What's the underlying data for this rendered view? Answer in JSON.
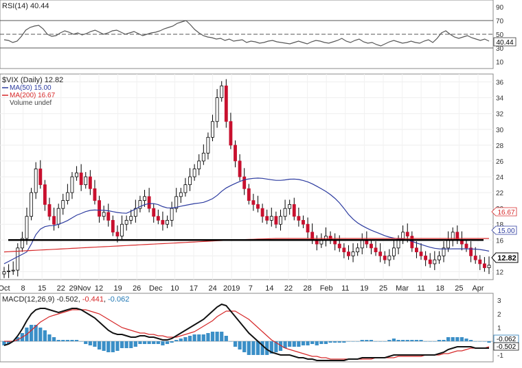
{
  "chart_data": [
    {
      "type": "line",
      "name": "rsi-panel",
      "label": "RSI(14) 40.44",
      "ylim": [
        0,
        100
      ],
      "yticks": [
        "90",
        "70",
        "50",
        "30",
        "10"
      ],
      "current_tag": "40.44",
      "levels": [
        70,
        50,
        30
      ],
      "values": [
        42,
        41,
        38,
        40,
        47,
        56,
        60,
        62,
        63,
        58,
        50,
        47,
        48,
        52,
        55,
        53,
        50,
        52,
        49,
        51,
        54,
        56,
        53,
        50,
        52,
        55,
        56,
        53,
        50,
        52,
        54,
        51,
        48,
        50,
        52,
        53,
        55,
        58,
        60,
        62,
        66,
        68,
        70,
        64,
        57,
        52,
        48,
        46,
        45,
        43,
        44,
        41,
        43,
        40,
        41,
        42,
        38,
        40,
        39,
        37,
        38,
        40,
        41,
        39,
        38,
        37,
        36,
        38,
        40,
        38,
        36,
        39,
        41,
        40,
        38,
        37,
        39,
        41,
        44,
        40,
        38,
        41,
        43,
        39,
        37,
        38,
        35,
        33,
        36,
        39,
        41,
        39,
        37,
        38,
        40,
        38,
        37,
        40,
        42,
        38,
        44,
        52,
        55,
        50,
        46,
        44,
        46,
        48,
        45,
        43,
        41,
        43,
        40
      ]
    },
    {
      "type": "candlestick",
      "name": "price-panel",
      "title": "$VIX (Daily) 12.82",
      "legend": [
        "MA(50) 15.00",
        "MA(200) 16.67",
        "Volume undef"
      ],
      "ylim": [
        11,
        37
      ],
      "yticks": [
        "36",
        "34",
        "32",
        "30",
        "28",
        "26",
        "24",
        "22",
        "20",
        "18",
        "16",
        "14",
        "12"
      ],
      "xticks": [
        "Oct",
        "8",
        "15",
        "22",
        "29Nov",
        "12",
        "19",
        "26",
        "Dec",
        "10",
        "17",
        "24",
        "2019",
        "7",
        "14",
        "22",
        "28",
        "Feb",
        "11",
        "19",
        "25",
        "Mar",
        "11",
        "18",
        "25",
        "Apr"
      ],
      "support_level": 16.0,
      "tags": {
        "ma200": "16.67",
        "ma50": "15.00",
        "last": "12.82"
      },
      "colors": {
        "up": "#ffffff",
        "down": "#c8102e",
        "ma50": "#2b3a9f",
        "ma200": "#d62728"
      },
      "close": [
        12.0,
        12.1,
        12.2,
        15.0,
        16.2,
        19.0,
        22.0,
        25.0,
        23.0,
        20.5,
        19.0,
        18.0,
        20.0,
        21.0,
        22.0,
        24.0,
        24.5,
        23.0,
        24.0,
        22.5,
        21.0,
        19.0,
        19.5,
        18.5,
        17.0,
        16.5,
        18.0,
        18.5,
        19.0,
        20.0,
        21.0,
        21.5,
        20.0,
        19.0,
        18.5,
        18.0,
        18.5,
        20.0,
        21.5,
        22.0,
        23.0,
        24.0,
        25.0,
        26.0,
        27.0,
        29.0,
        31.0,
        34.0,
        35.5,
        31.0,
        28.0,
        26.0,
        24.0,
        22.5,
        21.0,
        20.5,
        20.0,
        19.0,
        18.5,
        19.0,
        18.0,
        19.0,
        20.0,
        20.5,
        19.0,
        18.5,
        18.0,
        17.0,
        16.0,
        15.5,
        16.0,
        16.5,
        16.0,
        15.5,
        15.0,
        14.5,
        14.0,
        14.5,
        15.0,
        16.0,
        15.5,
        15.0,
        14.5,
        14.0,
        13.5,
        14.0,
        15.0,
        16.0,
        17.0,
        16.5,
        15.0,
        14.5,
        14.0,
        13.5,
        13.0,
        13.5,
        14.0,
        15.0,
        16.0,
        17.0,
        16.0,
        15.5,
        15.0,
        14.0,
        13.5,
        13.0,
        12.5,
        12.82
      ]
    },
    {
      "type": "line",
      "name": "macd-panel",
      "label_prefix": "MACD(12,26,9) ",
      "values_text": [
        "-0.502",
        "-0.441",
        "-0.062"
      ],
      "value_colors": [
        "#222222",
        "#d62728",
        "#1f77b4"
      ],
      "sep": ", ",
      "ylim": [
        -1.5,
        3.5
      ],
      "yticks": [
        "3",
        "2",
        "1",
        "0",
        "-1"
      ],
      "tags": [
        "-0.062",
        "-0.502"
      ],
      "macd": [
        -0.3,
        -0.2,
        0.0,
        0.4,
        0.9,
        1.5,
        2.0,
        2.3,
        2.4,
        2.4,
        2.3,
        2.2,
        2.1,
        2.2,
        2.3,
        2.4,
        2.4,
        2.3,
        2.1,
        1.9,
        1.7,
        1.4,
        1.1,
        0.8,
        0.6,
        0.5,
        0.5,
        0.4,
        0.3,
        0.3,
        0.4,
        0.4,
        0.3,
        0.3,
        0.2,
        0.1,
        0.1,
        0.2,
        0.4,
        0.6,
        0.8,
        1.0,
        1.2,
        1.4,
        1.6,
        1.9,
        2.2,
        2.5,
        2.7,
        2.6,
        2.2,
        1.8,
        1.4,
        1.0,
        0.6,
        0.3,
        0.0,
        -0.3,
        -0.6,
        -0.8,
        -0.9,
        -1.0,
        -1.0,
        -1.0,
        -1.1,
        -1.2,
        -1.2,
        -1.3,
        -1.3,
        -1.4,
        -1.4,
        -1.4,
        -1.4,
        -1.4,
        -1.4,
        -1.4,
        -1.3,
        -1.3,
        -1.3,
        -1.2,
        -1.2,
        -1.2,
        -1.2,
        -1.2,
        -1.2,
        -1.1,
        -1.0,
        -1.0,
        -1.0,
        -1.0,
        -1.0,
        -1.0,
        -1.0,
        -1.0,
        -1.0,
        -1.0,
        -0.9,
        -0.8,
        -0.6,
        -0.5,
        -0.4,
        -0.4,
        -0.4,
        -0.4,
        -0.5,
        -0.5,
        -0.5,
        -0.5
      ],
      "signal": [
        0.0,
        0.0,
        0.0,
        0.1,
        0.3,
        0.5,
        0.8,
        1.1,
        1.4,
        1.6,
        1.8,
        1.9,
        2.0,
        2.1,
        2.2,
        2.3,
        2.3,
        2.3,
        2.3,
        2.2,
        2.1,
        2.0,
        1.8,
        1.6,
        1.4,
        1.2,
        1.0,
        0.9,
        0.8,
        0.7,
        0.6,
        0.6,
        0.5,
        0.5,
        0.4,
        0.4,
        0.3,
        0.3,
        0.3,
        0.4,
        0.5,
        0.6,
        0.7,
        0.9,
        1.1,
        1.3,
        1.5,
        1.8,
        2.0,
        2.2,
        2.2,
        2.2,
        2.0,
        1.8,
        1.6,
        1.3,
        1.0,
        0.7,
        0.4,
        0.1,
        -0.1,
        -0.3,
        -0.5,
        -0.6,
        -0.7,
        -0.8,
        -0.9,
        -1.0,
        -1.1,
        -1.1,
        -1.2,
        -1.2,
        -1.3,
        -1.3,
        -1.3,
        -1.3,
        -1.3,
        -1.3,
        -1.3,
        -1.3,
        -1.3,
        -1.3,
        -1.2,
        -1.2,
        -1.2,
        -1.2,
        -1.2,
        -1.1,
        -1.1,
        -1.1,
        -1.1,
        -1.1,
        -1.1,
        -1.0,
        -1.0,
        -1.0,
        -1.0,
        -0.9,
        -0.9,
        -0.8,
        -0.7,
        -0.7,
        -0.6,
        -0.5,
        -0.5,
        -0.5,
        -0.5,
        -0.4
      ]
    }
  ]
}
